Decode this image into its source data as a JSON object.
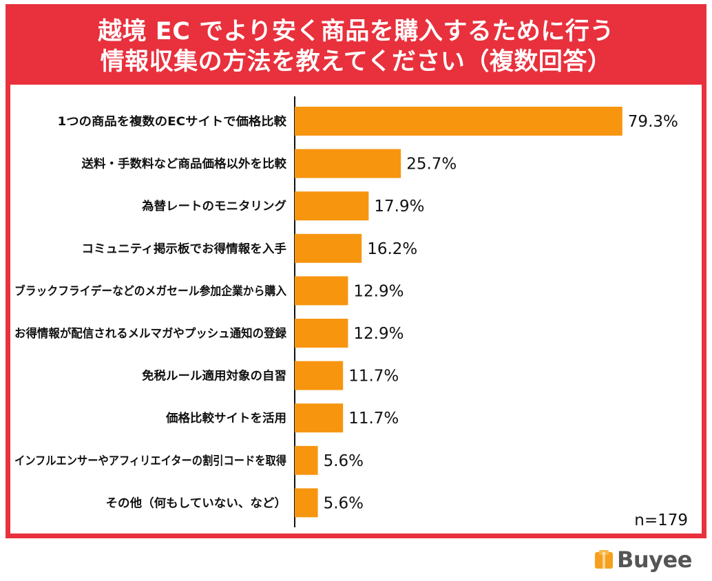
{
  "title": {
    "line1": "越境 EC でより安く商品を購入するために行う",
    "line2": "情報収集の方法を教えてください（複数回答）"
  },
  "sample_note": "n=179",
  "brand": {
    "logo_text": "Buyee",
    "logo_icon": "buyee-box-icon"
  },
  "colors": {
    "frame": "#e8313d",
    "bar": "#f7950f",
    "axis": "#111111",
    "logo_icon": "#f7a01d"
  },
  "chart_data": {
    "type": "bar",
    "orientation": "horizontal",
    "categories": [
      "1つの商品を複数のECサイトで価格比較",
      "送料・手数料など商品価格以外を比較",
      "為替レートのモニタリング",
      "コミュニティ掲示板でお得情報を入手",
      "ブラックフライデーなどのメガセール参加企業から購入",
      "お得情報が配信されるメルマガやプッシュ通知の登録",
      "免税ルール適用対象の自習",
      "価格比較サイトを活用",
      "インフルエンサーやアフィリエイターの割引コードを取得",
      "その他（何もしていない、など）"
    ],
    "values": [
      79.3,
      25.7,
      17.9,
      16.2,
      12.9,
      12.9,
      11.7,
      11.7,
      5.6,
      5.6
    ],
    "value_labels": [
      "79.3%",
      "25.7%",
      "17.9%",
      "16.2%",
      "12.9%",
      "12.9%",
      "11.7%",
      "11.7%",
      "5.6%",
      "5.6%"
    ],
    "unit": "%",
    "xlim": [
      0,
      100
    ],
    "grid": false,
    "legend": "none"
  }
}
